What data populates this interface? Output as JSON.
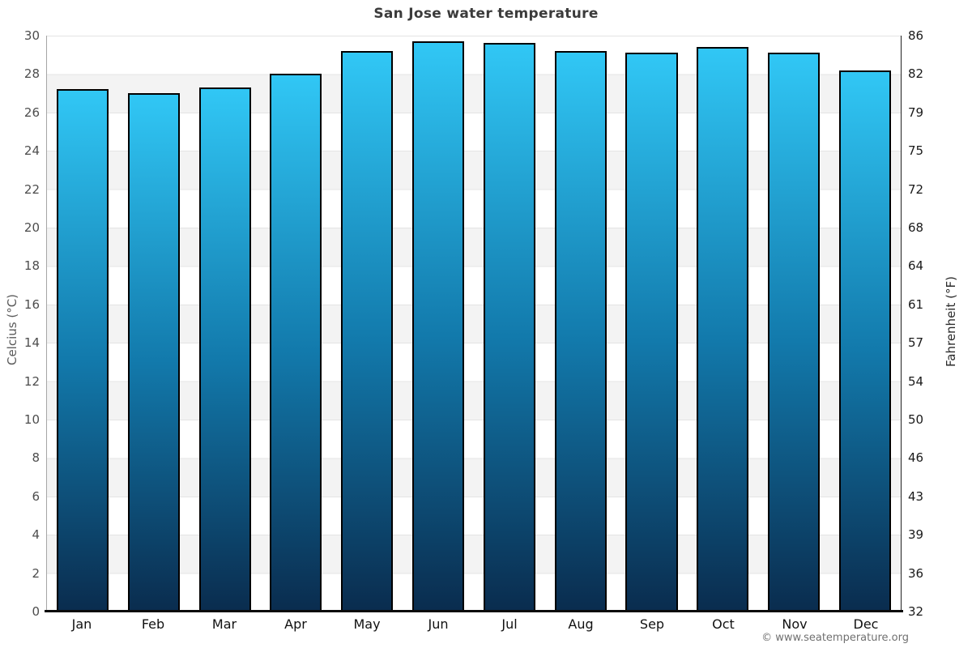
{
  "title": "San Jose water temperature",
  "footer": "© www.seatemperature.org",
  "chart_data": {
    "type": "bar",
    "title": "San Jose water temperature",
    "categories": [
      "Jan",
      "Feb",
      "Mar",
      "Apr",
      "May",
      "Jun",
      "Jul",
      "Aug",
      "Sep",
      "Oct",
      "Nov",
      "Dec"
    ],
    "values": [
      27.2,
      27.0,
      27.3,
      28.0,
      29.2,
      29.7,
      29.6,
      29.2,
      29.1,
      29.4,
      29.1,
      28.2
    ],
    "unit": "°C",
    "xlabel": "",
    "ylabel_left": "Celcius (°C)",
    "ylabel_right": "Fahrenheit (°F)",
    "ylim": [
      0,
      30
    ],
    "yticks_celsius": [
      30,
      28,
      26,
      24,
      22,
      20,
      18,
      16,
      14,
      12,
      10,
      8,
      6,
      4,
      2,
      0
    ],
    "yticks_fahrenheit": [
      86,
      82,
      79,
      75,
      72,
      68,
      64,
      61,
      57,
      54,
      50,
      46,
      43,
      39,
      36,
      32
    ],
    "grid": "horizontal-bands-2deg-alternating",
    "legend": "none",
    "colors": {
      "bar_gradient_top": "#31c7f5",
      "bar_gradient_bottom": "#0a2c4e",
      "bar_border": "#000000",
      "band_gray": "#f3f3f3",
      "band_white": "#ffffff",
      "gridline": "#e4e4e4",
      "baseline": "#0a0a0a",
      "title_text": "#3b3b3b",
      "tick_text_left": "#4d4d4d",
      "tick_text_right": "#1a1a1a",
      "month_text": "#111111",
      "footer_text": "#707070"
    }
  }
}
